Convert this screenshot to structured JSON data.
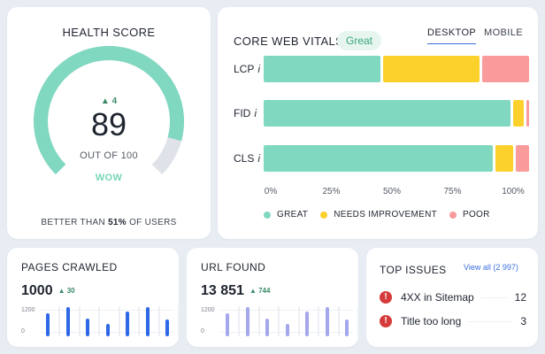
{
  "health": {
    "title": "HEALTH SCORE",
    "delta": "4",
    "score": "89",
    "out_of": "OUT OF 100",
    "label": "WOW",
    "better_prefix": "BETTER THAN ",
    "better_pct": "51%",
    "better_suffix": " OF USERS",
    "score_value": 89,
    "colors": {
      "fill": "#7fd8bf",
      "track": "#dfe2e8"
    }
  },
  "cwv": {
    "title": "CORE WEB VITALS",
    "badge": "Great",
    "tabs": {
      "desktop": "DESKTOP",
      "mobile": "MOBILE"
    },
    "info_glyph": "i",
    "chart_data": {
      "type": "bar",
      "orientation": "horizontal",
      "stacked": true,
      "categories": [
        "LCP",
        "FID",
        "CLS"
      ],
      "series": [
        {
          "name": "GREAT",
          "values": [
            45,
            95,
            88
          ],
          "color": "#7fd8bf"
        },
        {
          "name": "NEEDS IMPROVEMENT",
          "values": [
            37,
            4,
            7
          ],
          "color": "#fdd12c"
        },
        {
          "name": "POOR",
          "values": [
            18,
            1,
            5
          ],
          "color": "#f99b9b"
        }
      ],
      "xticks": [
        "0%",
        "25%",
        "50%",
        "75%",
        "100%"
      ],
      "xlim": [
        0,
        100
      ]
    }
  },
  "pages": {
    "title": "PAGES CRAWLED",
    "value": "1000",
    "delta": "30",
    "y_top": "1200",
    "y_bottom": "0",
    "bar_color": "#2e68e6",
    "chart_data": {
      "type": "bar",
      "values": [
        780,
        1000,
        600,
        420,
        830,
        990,
        560
      ],
      "ylim": [
        0,
        1200
      ]
    }
  },
  "urls": {
    "title": "URL FOUND",
    "value": "13 851",
    "delta": "744",
    "y_top": "1200",
    "y_bottom": "0",
    "bar_color": "#a4a7ec",
    "chart_data": {
      "type": "bar",
      "values": [
        780,
        1000,
        600,
        420,
        830,
        990,
        560
      ],
      "ylim": [
        0,
        1200
      ]
    }
  },
  "issues": {
    "title": "TOP ISSUES",
    "view_all": "View all (2 997)",
    "items": [
      {
        "name": "4XX in Sitemap",
        "count": "12"
      },
      {
        "name": "Title too long",
        "count": "3"
      }
    ]
  }
}
